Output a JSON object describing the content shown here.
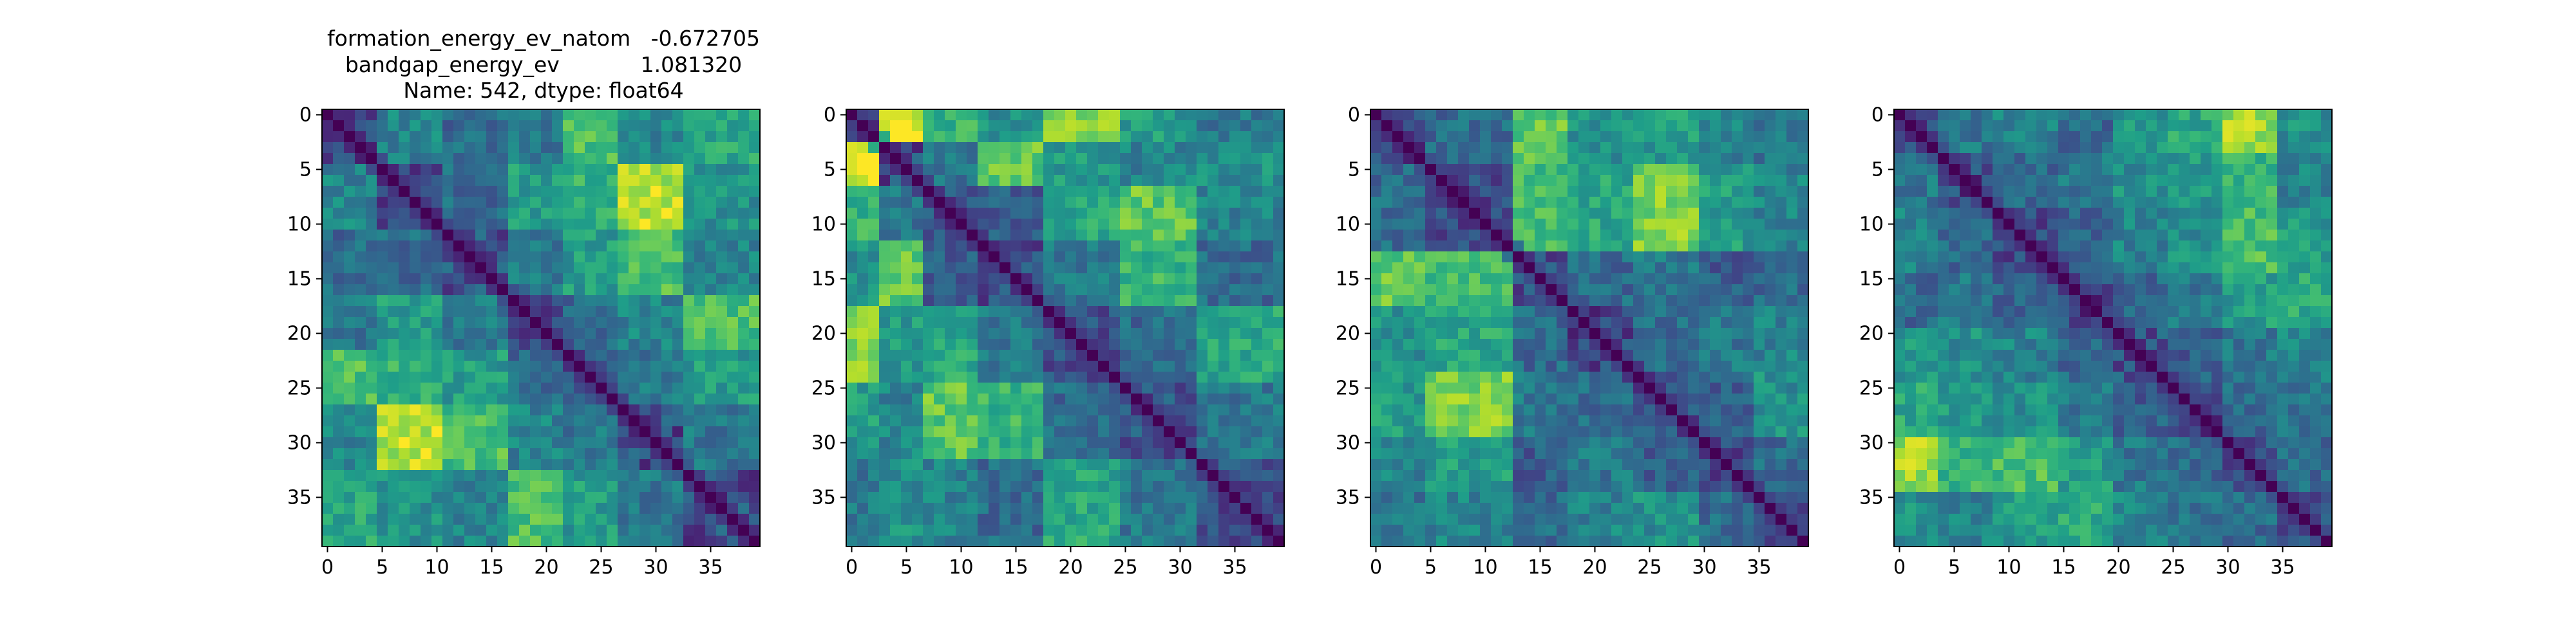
{
  "chart_data": [
    {
      "type": "heatmap",
      "title_lines": [
        "formation_energy_ev_natom   -0.672705",
        "bandgap_energy_ev            1.081320",
        "Name: 542, dtype: float64"
      ],
      "xlim": [
        -0.5,
        39.5
      ],
      "ylim": [
        39.5,
        -0.5
      ],
      "xticks": [
        0,
        5,
        10,
        15,
        20,
        25,
        30,
        35
      ],
      "yticks": [
        0,
        5,
        10,
        15,
        20,
        25,
        30,
        35
      ],
      "size": 40,
      "colormap": "viridis",
      "diagonal": "zero distance (dark purple)",
      "blocks": [
        0,
        5,
        11,
        17,
        22,
        27,
        33,
        40
      ],
      "block_levels": [
        [
          0.0,
          0.45,
          0.35,
          0.4,
          0.7,
          0.45,
          0.6
        ],
        [
          0.45,
          0.0,
          0.35,
          0.55,
          0.65,
          0.9,
          0.5
        ],
        [
          0.35,
          0.35,
          0.0,
          0.4,
          0.55,
          0.7,
          0.45
        ],
        [
          0.4,
          0.55,
          0.4,
          0.0,
          0.35,
          0.45,
          0.7
        ],
        [
          0.7,
          0.65,
          0.55,
          0.35,
          0.0,
          0.4,
          0.55
        ],
        [
          0.45,
          0.9,
          0.7,
          0.45,
          0.4,
          0.0,
          0.4
        ],
        [
          0.6,
          0.5,
          0.45,
          0.7,
          0.55,
          0.4,
          0.0
        ]
      ]
    },
    {
      "type": "heatmap",
      "xlim": [
        -0.5,
        39.5
      ],
      "ylim": [
        39.5,
        -0.5
      ],
      "xticks": [
        0,
        5,
        10,
        15,
        20,
        25,
        30,
        35
      ],
      "yticks": [
        0,
        5,
        10,
        15,
        20,
        25,
        30,
        35
      ],
      "size": 40,
      "colormap": "viridis",
      "diagonal": "zero distance (dark purple)",
      "blocks": [
        0,
        3,
        7,
        12,
        18,
        25,
        32,
        40
      ],
      "block_levels": [
        [
          0.0,
          0.95,
          0.65,
          0.5,
          0.8,
          0.55,
          0.4
        ],
        [
          0.95,
          0.0,
          0.4,
          0.75,
          0.55,
          0.45,
          0.5
        ],
        [
          0.65,
          0.4,
          0.0,
          0.3,
          0.6,
          0.75,
          0.45
        ],
        [
          0.5,
          0.75,
          0.3,
          0.0,
          0.4,
          0.65,
          0.35
        ],
        [
          0.8,
          0.55,
          0.6,
          0.4,
          0.0,
          0.35,
          0.6
        ],
        [
          0.55,
          0.45,
          0.75,
          0.65,
          0.35,
          0.0,
          0.4
        ],
        [
          0.4,
          0.5,
          0.45,
          0.35,
          0.6,
          0.4,
          0.0
        ]
      ]
    },
    {
      "type": "heatmap",
      "xlim": [
        -0.5,
        39.5
      ],
      "ylim": [
        39.5,
        -0.5
      ],
      "xticks": [
        0,
        5,
        10,
        15,
        20,
        25,
        30,
        35
      ],
      "yticks": [
        0,
        5,
        10,
        15,
        20,
        25,
        30,
        35
      ],
      "size": 40,
      "colormap": "viridis",
      "diagonal": "zero distance (dark purple)",
      "blocks": [
        0,
        5,
        13,
        18,
        24,
        30,
        35,
        40
      ],
      "block_levels": [
        [
          0.0,
          0.35,
          0.75,
          0.5,
          0.55,
          0.45,
          0.4
        ],
        [
          0.35,
          0.0,
          0.7,
          0.6,
          0.8,
          0.55,
          0.45
        ],
        [
          0.75,
          0.7,
          0.0,
          0.35,
          0.4,
          0.3,
          0.35
        ],
        [
          0.5,
          0.6,
          0.35,
          0.0,
          0.35,
          0.4,
          0.45
        ],
        [
          0.55,
          0.8,
          0.4,
          0.35,
          0.0,
          0.3,
          0.5
        ],
        [
          0.45,
          0.55,
          0.3,
          0.4,
          0.3,
          0.0,
          0.35
        ],
        [
          0.4,
          0.45,
          0.35,
          0.45,
          0.5,
          0.35,
          0.0
        ]
      ]
    },
    {
      "type": "heatmap",
      "xlim": [
        -0.5,
        39.5
      ],
      "ylim": [
        39.5,
        -0.5
      ],
      "xticks": [
        0,
        5,
        10,
        15,
        20,
        25,
        30,
        35
      ],
      "yticks": [
        0,
        5,
        10,
        15,
        20,
        25,
        30,
        35
      ],
      "size": 40,
      "colormap": "viridis",
      "diagonal": "zero distance (dark purple)",
      "blocks": [
        0,
        4,
        9,
        15,
        20,
        25,
        30,
        35,
        40
      ],
      "block_levels": [
        [
          0.0,
          0.4,
          0.45,
          0.35,
          0.55,
          0.6,
          0.85,
          0.5
        ],
        [
          0.4,
          0.0,
          0.35,
          0.4,
          0.5,
          0.55,
          0.65,
          0.45
        ],
        [
          0.45,
          0.35,
          0.0,
          0.3,
          0.45,
          0.5,
          0.7,
          0.55
        ],
        [
          0.35,
          0.4,
          0.3,
          0.0,
          0.35,
          0.4,
          0.55,
          0.6
        ],
        [
          0.55,
          0.5,
          0.45,
          0.35,
          0.0,
          0.3,
          0.4,
          0.45
        ],
        [
          0.6,
          0.55,
          0.5,
          0.4,
          0.3,
          0.0,
          0.35,
          0.4
        ],
        [
          0.85,
          0.65,
          0.7,
          0.55,
          0.4,
          0.35,
          0.0,
          0.35
        ],
        [
          0.5,
          0.45,
          0.55,
          0.6,
          0.45,
          0.4,
          0.35,
          0.0
        ]
      ]
    }
  ]
}
